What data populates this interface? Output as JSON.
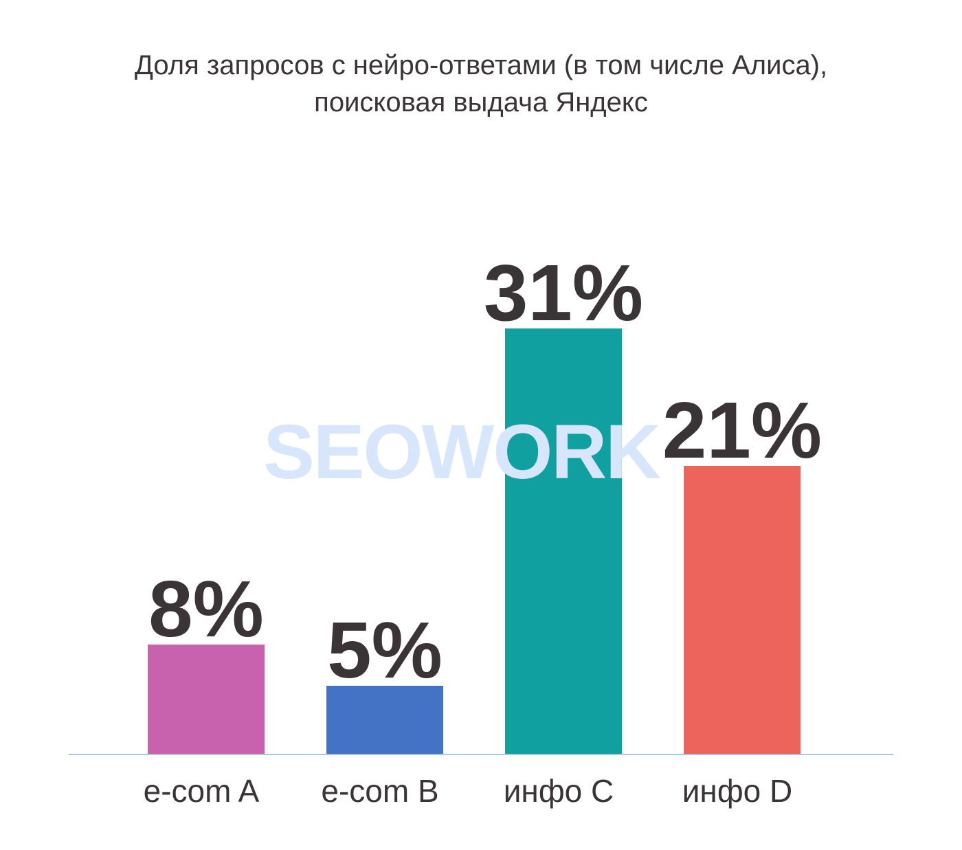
{
  "chart_data": {
    "type": "bar",
    "title_lines": [
      "Доля запросов с нейро-ответами (в том числе Алиса),",
      "поисковая выдача Яндекс"
    ],
    "categories": [
      "e-com A",
      "e-com B",
      "инфо C",
      "инфо D"
    ],
    "values": [
      8,
      5,
      31,
      21
    ],
    "value_labels": [
      "8%",
      "5%",
      "31%",
      "21%"
    ],
    "bar_colors": [
      "#c962ae",
      "#4472c4",
      "#11a0a0",
      "#ec645c"
    ],
    "ylim": [
      0,
      32
    ],
    "grid": false,
    "legend": "none"
  },
  "watermark": "SEOWORK",
  "colors": {
    "axis": "#a9c5e8",
    "text": "#3a3436",
    "watermark": "#d7e6fb"
  }
}
